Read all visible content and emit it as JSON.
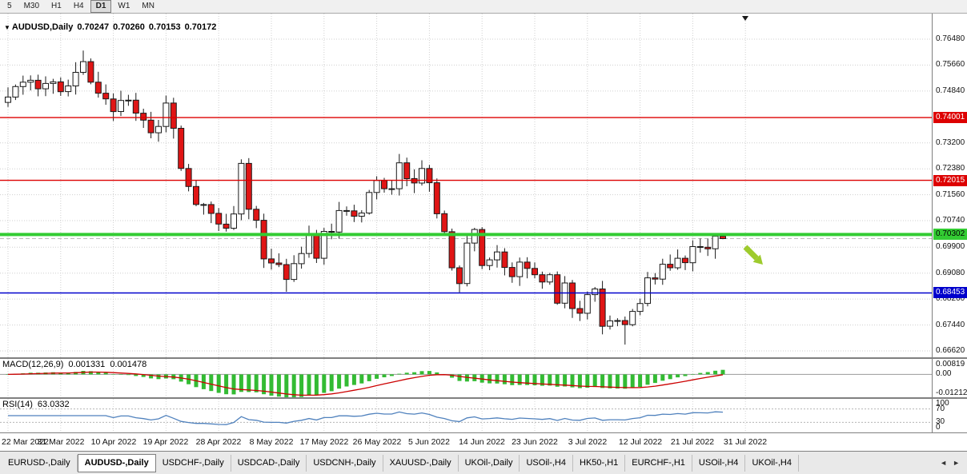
{
  "toolbar": {
    "timeframes": [
      {
        "label": "5",
        "active": false
      },
      {
        "label": "M30",
        "active": false
      },
      {
        "label": "H1",
        "active": false
      },
      {
        "label": "H4",
        "active": false
      },
      {
        "label": "D1",
        "active": true
      },
      {
        "label": "W1",
        "active": false
      },
      {
        "label": "MN",
        "active": false
      }
    ]
  },
  "chart": {
    "title": {
      "dropdown_icon": "▼",
      "symbol_period": "AUDUSD,Daily",
      "open": "0.70247",
      "high": "0.70260",
      "low": "0.70153",
      "close": "0.70172"
    },
    "annotation": {
      "type": "arrow",
      "direction": "down-right",
      "color": "#9ecb2d"
    }
  },
  "chart_data": {
    "type": "candlestick",
    "symbol": "AUDUSD",
    "timeframe": "Daily",
    "current_ohlc": {
      "open": 0.70247,
      "high": 0.7026,
      "low": 0.70153,
      "close": 0.70172
    },
    "y_range_visible": [
      0.6662,
      0.7648
    ],
    "y_ticks": [
      {
        "label": "0.76480",
        "value": 0.7648
      },
      {
        "label": "0.75660",
        "value": 0.7566
      },
      {
        "label": "0.74840",
        "value": 0.7484
      },
      {
        "label": "0.73200",
        "value": 0.732
      },
      {
        "label": "0.72380",
        "value": 0.7238
      },
      {
        "label": "0.71560",
        "value": 0.7156
      },
      {
        "label": "0.70740",
        "value": 0.7074
      },
      {
        "label": "0.69900",
        "value": 0.699
      },
      {
        "label": "0.69080",
        "value": 0.6908
      },
      {
        "label": "0.68260",
        "value": 0.6826
      },
      {
        "label": "0.67440",
        "value": 0.6744
      },
      {
        "label": "0.66620",
        "value": 0.6662
      }
    ],
    "x_ticks": [
      {
        "label": "22 Mar 2022",
        "index": 0
      },
      {
        "label": "31 Mar 2022",
        "index": 7
      },
      {
        "label": "10 Apr 2022",
        "index": 14
      },
      {
        "label": "19 Apr 2022",
        "index": 21
      },
      {
        "label": "28 Apr 2022",
        "index": 28
      },
      {
        "label": "8 May 2022",
        "index": 35
      },
      {
        "label": "17 May 2022",
        "index": 42
      },
      {
        "label": "26 May 2022",
        "index": 49
      },
      {
        "label": "5 Jun 2022",
        "index": 56
      },
      {
        "label": "14 Jun 2022",
        "index": 63
      },
      {
        "label": "23 Jun 2022",
        "index": 70
      },
      {
        "label": "3 Jul 2022",
        "index": 77
      },
      {
        "label": "12 Jul 2022",
        "index": 84
      },
      {
        "label": "21 Jul 2022",
        "index": 91
      },
      {
        "label": "31 Jul 2022",
        "index": 98
      }
    ],
    "horizontal_lines": [
      {
        "label": "0.74001",
        "value": 0.74001,
        "color": "#dd0000",
        "text_color": "#ffffff",
        "thickness": 1.4
      },
      {
        "label": "0.72015",
        "value": 0.72015,
        "color": "#dd0000",
        "text_color": "#ffffff",
        "thickness": 1.4
      },
      {
        "label": "0.70302",
        "value": 0.70302,
        "color": "#33cc33",
        "text_color": "#000000",
        "thickness": 4
      },
      {
        "label": "0.68453",
        "value": 0.68453,
        "color": "#0000cc",
        "text_color": "#ffffff",
        "thickness": 1.6
      }
    ],
    "current_price_line": 0.70172,
    "first_open": 0.7448,
    "closes": [
      0.7465,
      0.7498,
      0.7512,
      0.7518,
      0.7491,
      0.7508,
      0.7513,
      0.7482,
      0.75,
      0.7543,
      0.7577,
      0.7512,
      0.7477,
      0.7459,
      0.7419,
      0.7454,
      0.7455,
      0.7414,
      0.7392,
      0.7352,
      0.7372,
      0.7446,
      0.7366,
      0.7239,
      0.7182,
      0.7125,
      0.7125,
      0.7097,
      0.7063,
      0.705,
      0.7095,
      0.7255,
      0.711,
      0.7075,
      0.6953,
      0.694,
      0.6935,
      0.6888,
      0.6938,
      0.697,
      0.7027,
      0.6955,
      0.704,
      0.7038,
      0.7106,
      0.7105,
      0.7088,
      0.7098,
      0.7163,
      0.7201,
      0.7175,
      0.7175,
      0.7257,
      0.7207,
      0.7193,
      0.7239,
      0.7194,
      0.7096,
      0.7039,
      0.6925,
      0.6875,
      0.7003,
      0.7046,
      0.6932,
      0.695,
      0.6975,
      0.6926,
      0.6897,
      0.6943,
      0.6923,
      0.6903,
      0.688,
      0.6903,
      0.6813,
      0.6877,
      0.6796,
      0.6781,
      0.684,
      0.6858,
      0.674,
      0.6757,
      0.6758,
      0.6745,
      0.6787,
      0.6812,
      0.6893,
      0.6889,
      0.6936,
      0.6925,
      0.6955,
      0.6941,
      0.6992,
      0.699,
      0.6985,
      0.7025,
      0.7017
    ],
    "overrides": {
      "10": {
        "h": 0.7612
      },
      "31": {
        "h": 0.7268
      },
      "37": {
        "l": 0.6849
      },
      "52": {
        "h": 0.7285
      },
      "55": {
        "h": 0.7265
      },
      "60": {
        "l": 0.6847
      },
      "82": {
        "l": 0.6682
      },
      "94": {
        "h": 0.7031
      },
      "95": {
        "o": 0.70247,
        "h": 0.7026,
        "l": 0.70153,
        "c": 0.70172
      }
    },
    "indicators": {
      "macd": {
        "name": "MACD",
        "params": [
          12,
          26,
          9
        ],
        "main_value": 0.001331,
        "signal_value": 0.001478,
        "scale_max": 0.00819,
        "scale_min": -0.01212,
        "histogram_color": "#33bb33",
        "signal_color": "#cc0000"
      },
      "rsi": {
        "name": "RSI",
        "params": [
          14
        ],
        "value": 63.0332,
        "levels": [
          70,
          30
        ],
        "scale": [
          0,
          100
        ],
        "line_color": "#4f81bd"
      }
    }
  },
  "macd_panel": {
    "title": "MACD(12,26,9)",
    "main_value": "0.001331",
    "signal_value": "0.001478",
    "axis_labels": [
      "0.00819",
      "0.00",
      "-0.01212"
    ]
  },
  "rsi_panel": {
    "title": "RSI(14)",
    "value": "63.0332",
    "axis_labels": [
      "100",
      "70",
      "30",
      "0"
    ]
  },
  "tabs": {
    "scroll_left": "◄",
    "scroll_right": "►",
    "items": [
      {
        "label": "EURUSD-,Daily",
        "active": false
      },
      {
        "label": "AUDUSD-,Daily",
        "active": true
      },
      {
        "label": "USDCHF-,Daily",
        "active": false
      },
      {
        "label": "USDCAD-,Daily",
        "active": false
      },
      {
        "label": "USDCNH-,Daily",
        "active": false
      },
      {
        "label": "XAUUSD-,Daily",
        "active": false
      },
      {
        "label": "UKOil-,Daily",
        "active": false
      },
      {
        "label": "USOil-,H4",
        "active": false
      },
      {
        "label": "HK50-,H1",
        "active": false
      },
      {
        "label": "EURCHF-,H1",
        "active": false
      },
      {
        "label": "USOil-,H4",
        "active": false
      },
      {
        "label": "UKOil-,H4",
        "active": false
      }
    ]
  }
}
